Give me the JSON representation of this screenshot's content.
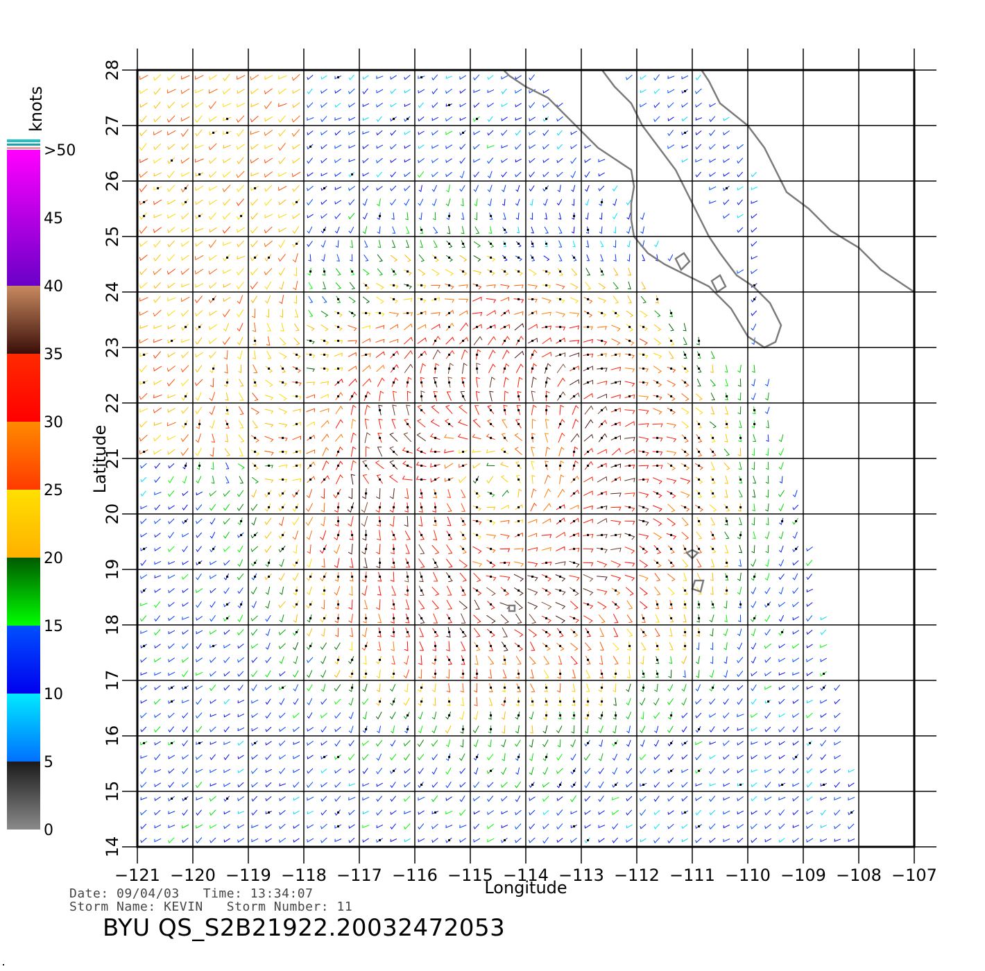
{
  "chart_data": {
    "type": "wind-vector-map",
    "xlabel": "Longitude",
    "ylabel": "Latitude",
    "xlim": [
      -121,
      -107
    ],
    "ylim": [
      14,
      28
    ],
    "x_ticks": [
      -121,
      -120,
      -119,
      -118,
      -117,
      -116,
      -115,
      -114,
      -113,
      -112,
      -111,
      -110,
      -109,
      -108,
      -107
    ],
    "x_tick_labels": [
      "−121",
      "−120",
      "−119",
      "−118",
      "−117",
      "−116",
      "−115",
      "−114",
      "−113",
      "−112",
      "−111",
      "−110",
      "−109",
      "−108",
      "−107"
    ],
    "y_ticks": [
      14,
      15,
      16,
      17,
      18,
      19,
      20,
      21,
      22,
      23,
      24,
      25,
      26,
      27,
      28
    ],
    "y_tick_labels": [
      "14",
      "15",
      "16",
      "17",
      "18",
      "19",
      "20",
      "21",
      "22",
      "23",
      "24",
      "25",
      "26",
      "27",
      "28"
    ],
    "grid": true,
    "storm_center": {
      "lon": -114.5,
      "lat": 20.5
    },
    "swath_east_edge": [
      [
        -109.8,
        23.2
      ],
      [
        -109.0,
        20.0
      ],
      [
        -108.4,
        17.0
      ],
      [
        -107.9,
        14.0
      ]
    ],
    "colorbar": {
      "unit": "knots",
      "ticks": [
        0,
        5,
        10,
        15,
        20,
        25,
        30,
        35,
        40,
        45,
        ">50"
      ],
      "bands": [
        {
          "from": 0,
          "to": 5,
          "top": "#1a1a1a",
          "bottom": "#8a8a8a"
        },
        {
          "from": 5,
          "to": 10,
          "top": "#00eaff",
          "bottom": "#0070ff"
        },
        {
          "from": 10,
          "to": 15,
          "top": "#0050ff",
          "bottom": "#0000ee"
        },
        {
          "from": 15,
          "to": 20,
          "top": "#005a00",
          "bottom": "#00ff00"
        },
        {
          "from": 20,
          "to": 25,
          "top": "#ffe000",
          "bottom": "#ffb000"
        },
        {
          "from": 25,
          "to": 30,
          "top": "#ff8a00",
          "bottom": "#ff3a00"
        },
        {
          "from": 30,
          "to": 35,
          "top": "#ff2a00",
          "bottom": "#ff0000"
        },
        {
          "from": 35,
          "to": 40,
          "top": "#c88a60",
          "bottom": "#3a0e08"
        },
        {
          "from": 40,
          "to": 50,
          "top": "#ff00ff",
          "bottom": "#6a00c8"
        }
      ]
    }
  },
  "info": {
    "date_label": "Date:",
    "date": "09/04/03",
    "time_label": "Time:",
    "time": "13:34:07",
    "storm_name_label": "Storm Name:",
    "storm_name": "KEVIN",
    "storm_number_label": "Storm Number:",
    "storm_number": "11",
    "product_prefix": "BYU",
    "product_id": "QS_S2B21922.20032472053"
  }
}
